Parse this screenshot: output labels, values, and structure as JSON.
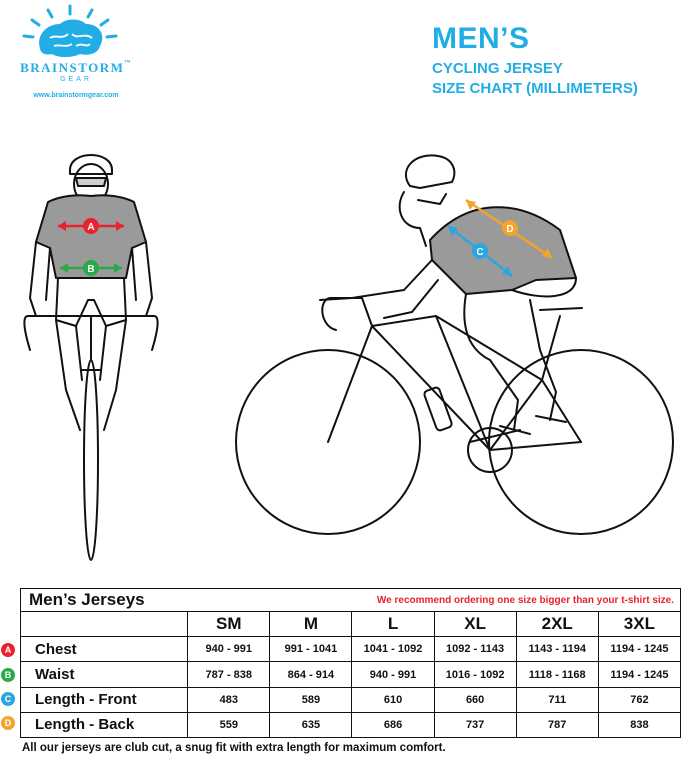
{
  "logo": {
    "brand": "BRAINSTORM",
    "trademark": "™",
    "gear": "GEAR",
    "url": "www.brainstormgear.com"
  },
  "title": {
    "main": "MEN’S",
    "line1": "CYCLING JERSEY",
    "line2": "SIZE CHART (MILLIMETERS)"
  },
  "figure": {
    "front_labels": [
      "A",
      "B"
    ],
    "side_labels": [
      "C",
      "D"
    ]
  },
  "colors": {
    "brand_blue": "#22aee4",
    "marker_a": "#e8232b",
    "marker_b": "#2aa84a",
    "marker_c": "#2aa6e0",
    "marker_d": "#f2a52a",
    "jersey_gray": "#9a9a9a",
    "note_red": "#e8232b"
  },
  "table": {
    "title": "Men’s Jerseys",
    "note": "We recommend ordering one size bigger than your t-shirt size.",
    "sizes": [
      "SM",
      "M",
      "L",
      "XL",
      "2XL",
      "3XL"
    ],
    "rows": [
      {
        "marker": "A",
        "label": "Chest",
        "values": [
          "940 - 991",
          "991 - 1041",
          "1041 - 1092",
          "1092 - 1143",
          "1143 - 1194",
          "1194 - 1245"
        ]
      },
      {
        "marker": "B",
        "label": "Waist",
        "values": [
          "787 - 838",
          "864 - 914",
          "940 - 991",
          "1016 - 1092",
          "1118 - 1168",
          "1194 - 1245"
        ]
      },
      {
        "marker": "C",
        "label": "Length - Front",
        "values": [
          "483",
          "589",
          "610",
          "660",
          "711",
          "762"
        ]
      },
      {
        "marker": "D",
        "label": "Length - Back",
        "values": [
          "559",
          "635",
          "686",
          "737",
          "787",
          "838"
        ]
      }
    ]
  },
  "footnote": "All our jerseys are club cut, a snug fit with extra length for maximum comfort."
}
